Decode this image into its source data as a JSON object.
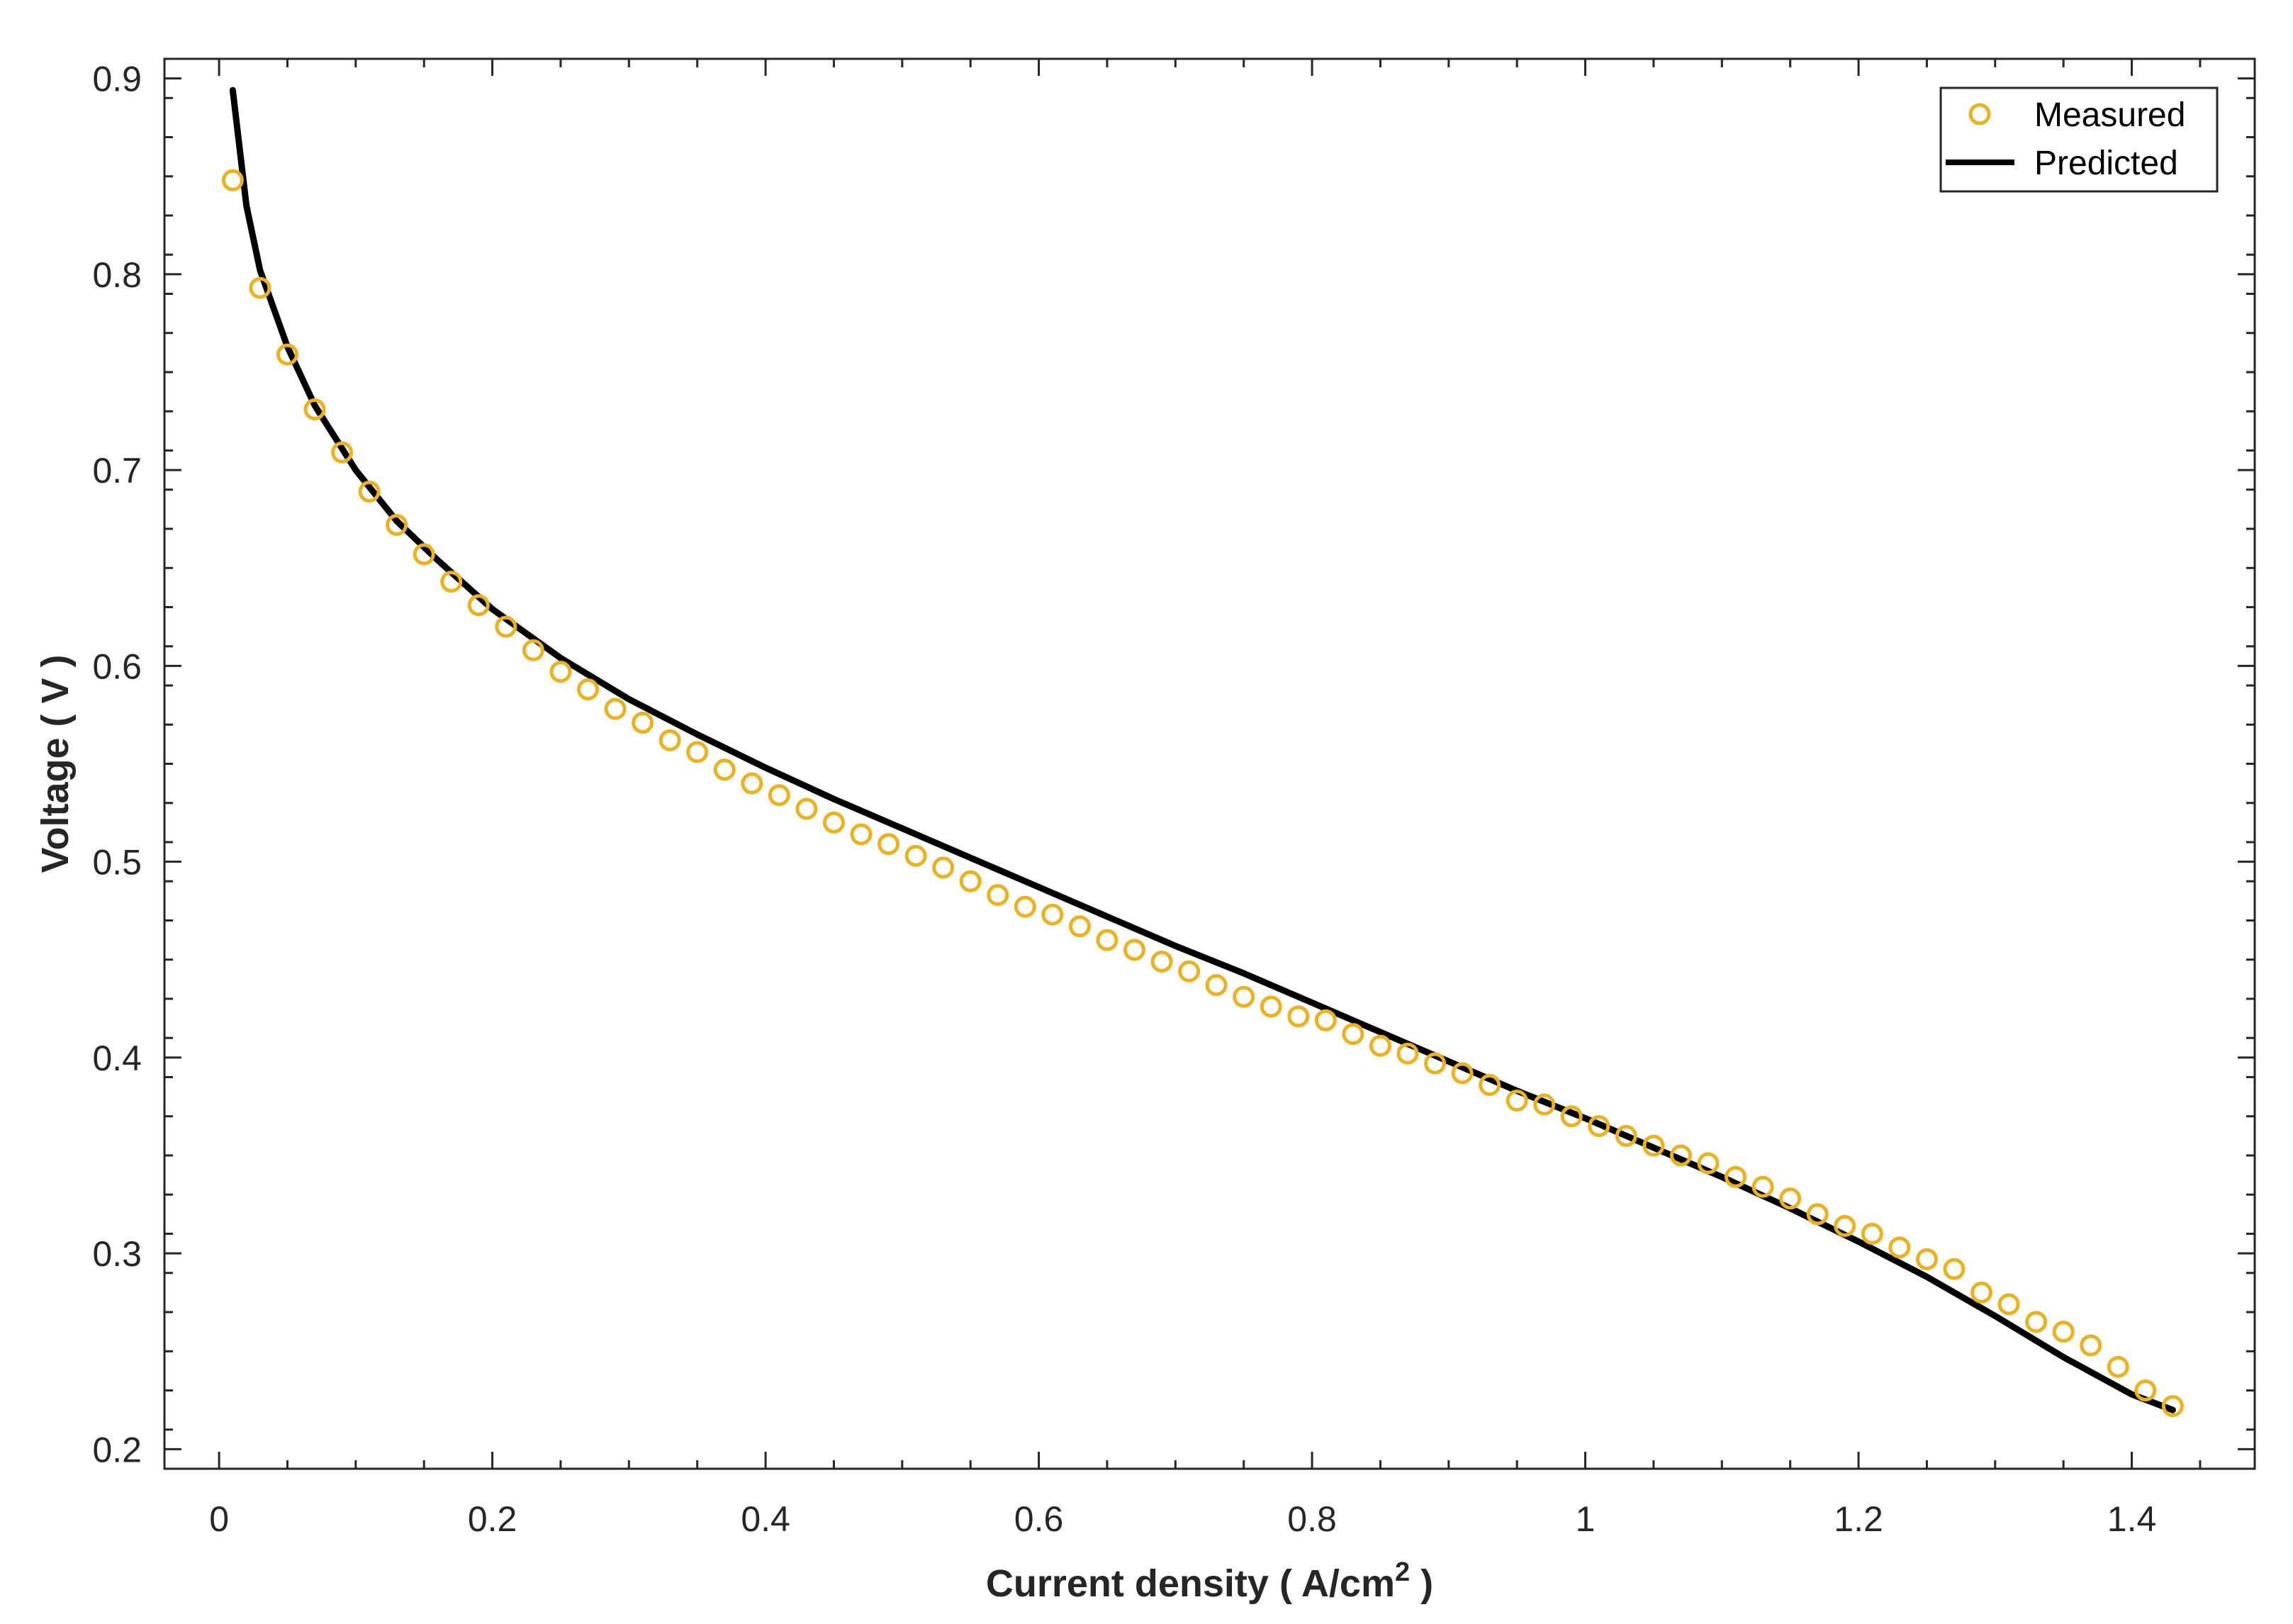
{
  "chart_data": {
    "type": "scatter",
    "title": "",
    "xlabel": "Current density ( A/cm",
    "xlabel_sup": "2",
    "xlabel_end": " )",
    "ylabel": "Voltage ( V )",
    "xlim": [
      -0.04,
      1.49
    ],
    "ylim": [
      0.19,
      0.91
    ],
    "xticks": [
      0,
      0.2,
      0.4,
      0.6,
      0.8,
      1,
      1.2,
      1.4
    ],
    "xtick_labels": [
      "0",
      "0.2",
      "0.4",
      "0.6",
      "0.8",
      "1",
      "1.2",
      "1.4"
    ],
    "yticks": [
      0.2,
      0.3,
      0.4,
      0.5,
      0.6,
      0.7,
      0.8,
      0.9
    ],
    "ytick_labels": [
      "0.2",
      "0.3",
      "0.4",
      "0.5",
      "0.6",
      "0.7",
      "0.8",
      "0.9"
    ],
    "grid": false,
    "legend_position": "top-right",
    "series": [
      {
        "name": "Measured",
        "style": "markers",
        "color": "#EDB120",
        "x": [
          0.01,
          0.03,
          0.05,
          0.07,
          0.09,
          0.11,
          0.13,
          0.15,
          0.17,
          0.19,
          0.21,
          0.23,
          0.25,
          0.27,
          0.29,
          0.31,
          0.33,
          0.35,
          0.37,
          0.39,
          0.41,
          0.43,
          0.45,
          0.47,
          0.49,
          0.51,
          0.53,
          0.55,
          0.57,
          0.59,
          0.61,
          0.63,
          0.65,
          0.67,
          0.69,
          0.71,
          0.73,
          0.75,
          0.77,
          0.79,
          0.81,
          0.83,
          0.85,
          0.87,
          0.89,
          0.91,
          0.93,
          0.95,
          0.97,
          0.99,
          1.01,
          1.03,
          1.05,
          1.07,
          1.09,
          1.11,
          1.13,
          1.15,
          1.17,
          1.19,
          1.21,
          1.23,
          1.25,
          1.27,
          1.29,
          1.31,
          1.33,
          1.35,
          1.37,
          1.39,
          1.41,
          1.43
        ],
        "y": [
          0.848,
          0.793,
          0.759,
          0.731,
          0.709,
          0.689,
          0.672,
          0.657,
          0.643,
          0.631,
          0.62,
          0.608,
          0.597,
          0.588,
          0.578,
          0.571,
          0.562,
          0.556,
          0.547,
          0.54,
          0.534,
          0.527,
          0.52,
          0.514,
          0.509,
          0.503,
          0.497,
          0.49,
          0.483,
          0.477,
          0.473,
          0.467,
          0.46,
          0.455,
          0.449,
          0.444,
          0.437,
          0.431,
          0.426,
          0.421,
          0.419,
          0.412,
          0.406,
          0.402,
          0.397,
          0.392,
          0.386,
          0.378,
          0.376,
          0.37,
          0.365,
          0.36,
          0.355,
          0.35,
          0.346,
          0.339,
          0.334,
          0.328,
          0.32,
          0.314,
          0.31,
          0.303,
          0.297,
          0.292,
          0.28,
          0.274,
          0.265,
          0.26,
          0.253,
          0.242,
          0.23,
          0.222
        ]
      },
      {
        "name": "Predicted",
        "style": "line",
        "color": "#000000",
        "x": [
          0.01,
          0.02,
          0.03,
          0.05,
          0.07,
          0.1,
          0.13,
          0.16,
          0.2,
          0.25,
          0.3,
          0.35,
          0.4,
          0.45,
          0.5,
          0.55,
          0.6,
          0.65,
          0.7,
          0.75,
          0.8,
          0.85,
          0.9,
          0.95,
          1.0,
          1.05,
          1.1,
          1.15,
          1.2,
          1.25,
          1.3,
          1.35,
          1.4,
          1.43
        ],
        "y": [
          0.894,
          0.835,
          0.802,
          0.763,
          0.733,
          0.7,
          0.674,
          0.654,
          0.629,
          0.604,
          0.583,
          0.565,
          0.548,
          0.532,
          0.517,
          0.502,
          0.487,
          0.472,
          0.457,
          0.443,
          0.428,
          0.413,
          0.398,
          0.383,
          0.369,
          0.354,
          0.339,
          0.323,
          0.306,
          0.288,
          0.268,
          0.247,
          0.228,
          0.22
        ]
      }
    ]
  }
}
